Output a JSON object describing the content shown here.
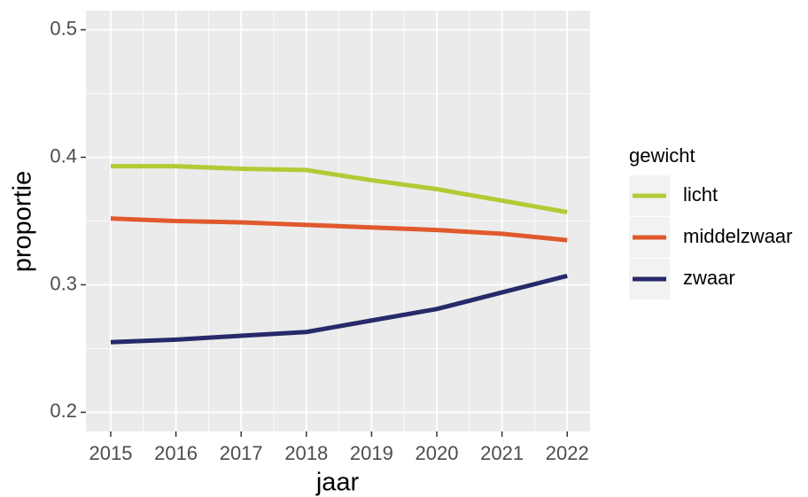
{
  "chart_data": {
    "type": "line",
    "x_label": "jaar",
    "y_label": "proportie",
    "x": [
      2015,
      2016,
      2017,
      2018,
      2019,
      2020,
      2021,
      2022
    ],
    "series": [
      {
        "name": "licht",
        "color": "#b5c935",
        "values": [
          0.393,
          0.393,
          0.391,
          0.39,
          0.382,
          0.375,
          0.366,
          0.357
        ]
      },
      {
        "name": "middelzwaar",
        "color": "#e0592c",
        "values": [
          0.352,
          0.35,
          0.349,
          0.347,
          0.345,
          0.343,
          0.34,
          0.335
        ]
      },
      {
        "name": "zwaar",
        "color": "#27296b",
        "values": [
          0.255,
          0.257,
          0.26,
          0.263,
          0.272,
          0.281,
          0.294,
          0.307
        ]
      }
    ],
    "xlim": [
      2014.62,
      2022.35
    ],
    "xticks": [
      2015,
      2016,
      2017,
      2018,
      2019,
      2020,
      2021,
      2022
    ],
    "ylim": [
      0.185,
      0.515
    ],
    "yticks": [
      0.2,
      0.3,
      0.4,
      0.5
    ],
    "grid": true,
    "legend_title": "gewicht",
    "legend_position": "right"
  }
}
